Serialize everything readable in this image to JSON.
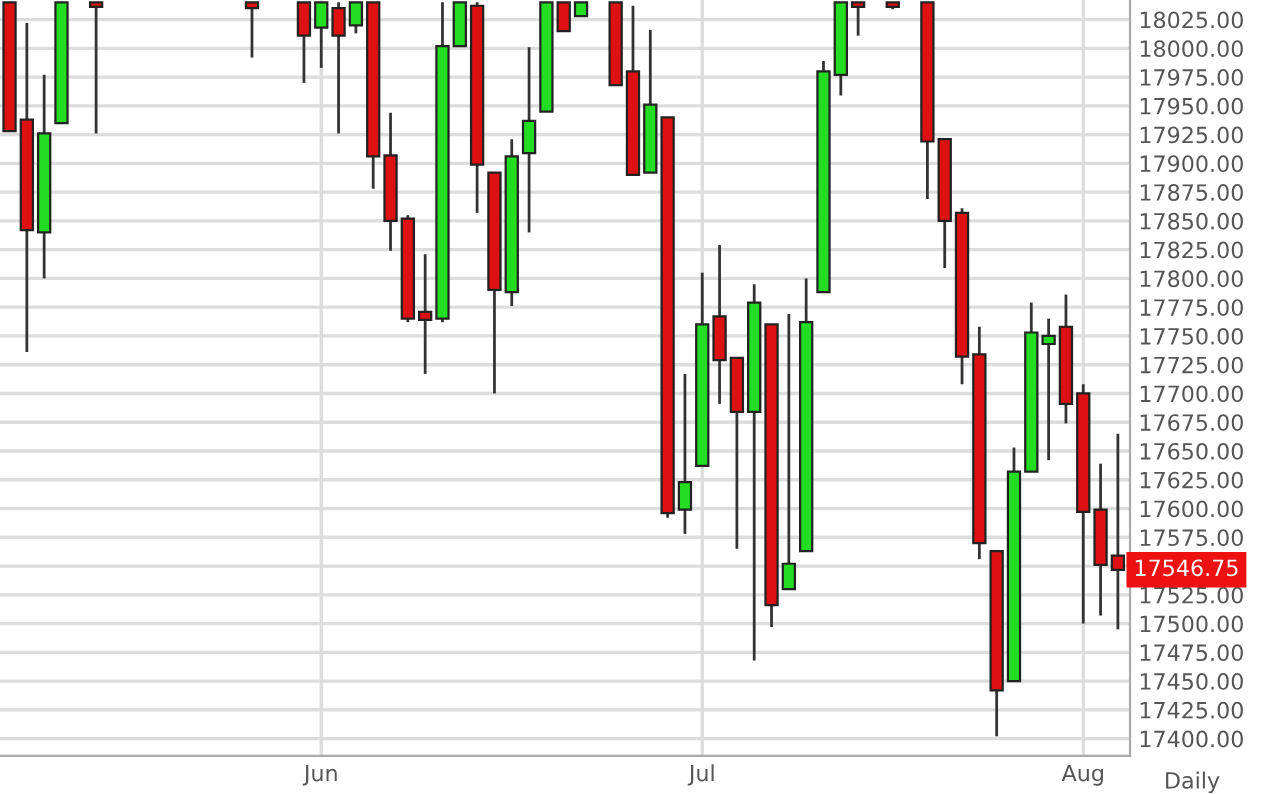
{
  "chart_data": {
    "type": "candlestick",
    "categories": [
      null,
      null,
      null,
      null,
      null,
      null,
      null,
      null,
      null,
      null,
      null,
      null,
      null,
      null,
      null,
      null,
      null,
      null,
      "Jun",
      null,
      null,
      null,
      null,
      null,
      null,
      null,
      null,
      null,
      null,
      null,
      null,
      null,
      null,
      null,
      null,
      null,
      null,
      null,
      null,
      null,
      "Jul",
      null,
      null,
      null,
      null,
      null,
      null,
      null,
      null,
      null,
      null,
      null,
      null,
      null,
      null,
      null,
      null,
      null,
      null,
      null,
      null,
      null,
      "Aug",
      null,
      null
    ],
    "ohlc": [
      [
        18040,
        18040,
        17928,
        17928
      ],
      [
        17938,
        18022,
        17736,
        17842
      ],
      [
        17840,
        17977,
        17800,
        17926
      ],
      [
        17935,
        18040,
        17935,
        18040
      ],
      null,
      [
        18040,
        18040,
        17926,
        18036
      ],
      null,
      null,
      null,
      null,
      null,
      null,
      null,
      null,
      [
        18040,
        18040,
        17992,
        18035
      ],
      null,
      null,
      [
        18040,
        18040,
        17970,
        18011
      ],
      [
        18018,
        18040,
        17983,
        18040
      ],
      [
        18035,
        18040,
        17926,
        18011
      ],
      [
        18020,
        18040,
        18013,
        18040
      ],
      [
        18040,
        18040,
        17878,
        17906
      ],
      [
        17907,
        17944,
        17824,
        17850
      ],
      [
        17852,
        17855,
        17762,
        17765
      ],
      [
        17771,
        17821,
        17717,
        17764
      ],
      [
        17765,
        18040,
        17762,
        18002
      ],
      [
        18002,
        18040,
        18002,
        18040
      ],
      [
        18037,
        18040,
        17857,
        17899
      ],
      [
        17892,
        17892,
        17700,
        17790
      ],
      [
        17788,
        17921,
        17776,
        17906
      ],
      [
        17909,
        18001,
        17840,
        17937
      ],
      [
        17945,
        18040,
        17945,
        18040
      ],
      [
        18040,
        18040,
        18015,
        18015
      ],
      [
        18028,
        18040,
        18028,
        18040
      ],
      null,
      [
        18040,
        18040,
        17968,
        17968
      ],
      [
        17980,
        18037,
        17890,
        17890
      ],
      [
        17892,
        18016,
        17892,
        17951
      ],
      [
        17940,
        17940,
        17592,
        17596
      ],
      [
        17599,
        17717,
        17578,
        17623
      ],
      [
        17637,
        17805,
        17637,
        17760
      ],
      [
        17767,
        17829,
        17691,
        17729
      ],
      [
        17731,
        17731,
        17565,
        17684
      ],
      [
        17684,
        17795,
        17468,
        17779
      ],
      [
        17760,
        17760,
        17497,
        17516
      ],
      [
        17530,
        17769,
        17530,
        17552
      ],
      [
        17563,
        17800,
        17563,
        17762
      ],
      [
        17788,
        17989,
        17788,
        17980
      ],
      [
        17977,
        18040,
        17959,
        18040
      ],
      [
        18040,
        18040,
        18011,
        18036
      ],
      null,
      [
        18040,
        18040,
        18034,
        18036
      ],
      null,
      [
        18040,
        18040,
        17869,
        17919
      ],
      [
        17921,
        17921,
        17809,
        17850
      ],
      [
        17857,
        17861,
        17708,
        17732
      ],
      [
        17734,
        17758,
        17556,
        17570
      ],
      [
        17563,
        17563,
        17402,
        17442
      ],
      [
        17450,
        17653,
        17450,
        17632
      ],
      [
        17632,
        17779,
        17632,
        17753
      ],
      [
        17743,
        17765,
        17642,
        17750
      ],
      [
        17758,
        17786,
        17674,
        17691
      ],
      [
        17700,
        17708,
        17500,
        17597
      ],
      [
        17599,
        17639,
        17507,
        17551
      ],
      [
        17559,
        17665,
        17495,
        17546.75
      ]
    ],
    "colors": [
      "#dd1111",
      "#dd1111",
      "#22dd22",
      "#22dd22",
      null,
      "#dd1111",
      null,
      null,
      null,
      null,
      null,
      null,
      null,
      null,
      "#dd1111",
      null,
      null,
      "#dd1111",
      "#22dd22",
      "#dd1111",
      "#22dd22",
      "#dd1111",
      "#dd1111",
      "#dd1111",
      "#dd1111",
      "#22dd22",
      "#22dd22",
      "#dd1111",
      "#dd1111",
      "#22dd22",
      "#22dd22",
      "#22dd22",
      "#dd1111",
      "#22dd22",
      null,
      "#dd1111",
      "#dd1111",
      "#22dd22",
      "#dd1111",
      "#22dd22",
      "#22dd22",
      "#dd1111",
      "#dd1111",
      "#22dd22",
      "#dd1111",
      "#22dd22",
      "#22dd22",
      "#22dd22",
      "#22dd22",
      "#dd1111",
      null,
      "#dd1111",
      null,
      "#dd1111",
      "#dd1111",
      "#dd1111",
      "#dd1111",
      "#dd1111",
      "#22dd22",
      "#22dd22",
      "#22dd22",
      "#dd1111",
      "#dd1111",
      "#dd1111",
      "#dd1111"
    ],
    "ylim": [
      17385,
      18042
    ],
    "yticks": [
      {
        "value": 17400,
        "label": "17400.00"
      },
      {
        "value": 17425,
        "label": "17425.00"
      },
      {
        "value": 17450,
        "label": "17450.00"
      },
      {
        "value": 17475,
        "label": "17475.00"
      },
      {
        "value": 17500,
        "label": "17500.00"
      },
      {
        "value": 17525,
        "label": "17525.00"
      },
      {
        "value": 17550,
        "label": null
      },
      {
        "value": 17575,
        "label": "17575.00"
      },
      {
        "value": 17600,
        "label": "17600.00"
      },
      {
        "value": 17625,
        "label": "17625.00"
      },
      {
        "value": 17650,
        "label": "17650.00"
      },
      {
        "value": 17675,
        "label": "17675.00"
      },
      {
        "value": 17700,
        "label": "17700.00"
      },
      {
        "value": 17725,
        "label": "17725.00"
      },
      {
        "value": 17750,
        "label": "17750.00"
      },
      {
        "value": 17775,
        "label": "17775.00"
      },
      {
        "value": 17800,
        "label": "17800.00"
      },
      {
        "value": 17825,
        "label": "17825.00"
      },
      {
        "value": 17850,
        "label": "17850.00"
      },
      {
        "value": 17875,
        "label": "17875.00"
      },
      {
        "value": 17900,
        "label": "17900.00"
      },
      {
        "value": 17925,
        "label": "17925.00"
      },
      {
        "value": 17950,
        "label": "17950.00"
      },
      {
        "value": 17975,
        "label": "17975.00"
      },
      {
        "value": 18000,
        "label": "18000.00"
      },
      {
        "value": 18025,
        "label": "18025.00"
      }
    ],
    "annotations": [
      "17546.75",
      "Daily"
    ],
    "grid": true
  }
}
